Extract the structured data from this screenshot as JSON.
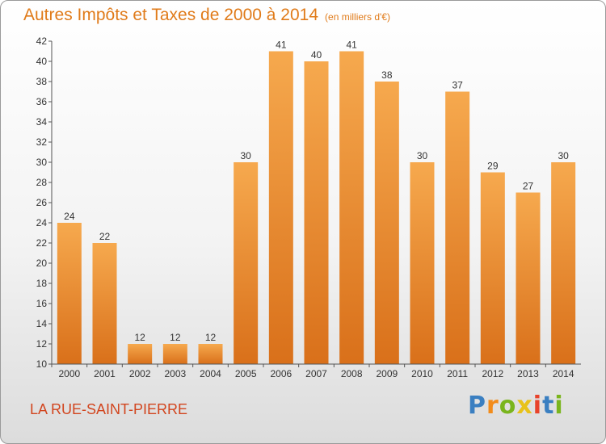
{
  "header": {
    "title": "Autres Impôts et Taxes de 2000 à 2014",
    "subtitle": "(en milliers d'€)"
  },
  "footer": {
    "location": "LA RUE-SAINT-PIERRE",
    "logo_letters": [
      {
        "char": "P",
        "color": "#3a7fc1"
      },
      {
        "char": "r",
        "color": "#f28c1b"
      },
      {
        "char": "o",
        "color": "#7ab51d"
      },
      {
        "char": "x",
        "color": "#e8c21a"
      },
      {
        "char": "i",
        "color": "#e8432b"
      },
      {
        "char": "t",
        "color": "#3a7fc1"
      },
      {
        "char": "i",
        "color": "#7ab51d"
      }
    ]
  },
  "chart_data": {
    "type": "bar",
    "title": "Autres Impôts et Taxes de 2000 à 2014",
    "subtitle": "(en milliers d'€)",
    "categories": [
      "2000",
      "2001",
      "2002",
      "2003",
      "2004",
      "2005",
      "2006",
      "2007",
      "2008",
      "2009",
      "2010",
      "2011",
      "2012",
      "2013",
      "2014"
    ],
    "values": [
      24,
      22,
      12,
      12,
      12,
      30,
      41,
      40,
      41,
      38,
      30,
      37,
      29,
      27,
      30
    ],
    "ylim": [
      10,
      42
    ],
    "yticks": [
      10,
      12,
      14,
      16,
      18,
      20,
      22,
      24,
      26,
      28,
      30,
      32,
      34,
      36,
      38,
      40,
      42
    ],
    "grid": false,
    "legend": "none",
    "colors": {
      "bar_top": "#f6a94e",
      "bar_bottom": "#d9701a",
      "axis": "#555555"
    }
  }
}
